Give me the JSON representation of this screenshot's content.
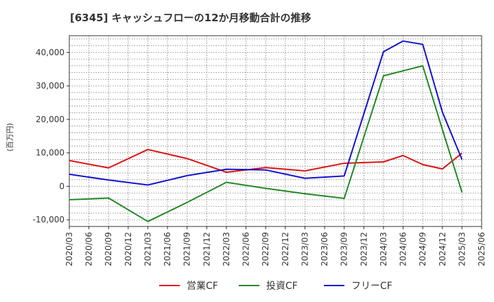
{
  "chart_data": {
    "type": "line",
    "title": "[6345]  キャッシュフローの12か月移動合計の推移",
    "xlabel": "",
    "ylabel": "(百万円)",
    "ylim": [
      -12000,
      45000
    ],
    "yticks": [
      -10000,
      0,
      10000,
      20000,
      30000,
      40000
    ],
    "ytick_labels": [
      "-10,000",
      "0",
      "10,000",
      "20,000",
      "30,000",
      "40,000"
    ],
    "xticks": [
      "2020/03",
      "2020/06",
      "2020/09",
      "2020/12",
      "2021/03",
      "2021/06",
      "2021/09",
      "2021/12",
      "2022/03",
      "2022/06",
      "2022/09",
      "2022/12",
      "2023/03",
      "2023/06",
      "2023/09",
      "2023/12",
      "2024/03",
      "2024/06",
      "2024/09",
      "2024/12",
      "2025/03",
      "2025/06"
    ],
    "grid": true,
    "legend_position": "bottom",
    "series": [
      {
        "name": "営業CF",
        "color": "#dd1111",
        "x": [
          "2020/03",
          "2020/09",
          "2021/03",
          "2021/09",
          "2022/03",
          "2022/09",
          "2023/03",
          "2023/09",
          "2024/03",
          "2024/06",
          "2024/09",
          "2024/12",
          "2025/03"
        ],
        "values": [
          7700,
          5500,
          11000,
          8300,
          4200,
          5600,
          4600,
          6900,
          7300,
          9200,
          6500,
          5200,
          9900
        ]
      },
      {
        "name": "投資CF",
        "color": "#228822",
        "x": [
          "2020/03",
          "2020/09",
          "2021/03",
          "2021/09",
          "2022/03",
          "2022/09",
          "2023/03",
          "2023/09",
          "2024/03",
          "2024/06",
          "2024/09",
          "2024/12",
          "2025/03"
        ],
        "values": [
          -4000,
          -3500,
          -10500,
          -4800,
          1200,
          -600,
          -2200,
          -3600,
          33000,
          34500,
          36000,
          17000,
          -1800
        ]
      },
      {
        "name": "フリーCF",
        "color": "#1111cc",
        "x": [
          "2020/03",
          "2020/09",
          "2021/03",
          "2021/09",
          "2022/03",
          "2022/09",
          "2023/03",
          "2023/09",
          "2024/03",
          "2024/06",
          "2024/09",
          "2024/12",
          "2025/03"
        ],
        "values": [
          3600,
          1900,
          400,
          3200,
          5100,
          4900,
          2400,
          3100,
          40200,
          43400,
          42400,
          22200,
          8000
        ]
      }
    ]
  }
}
